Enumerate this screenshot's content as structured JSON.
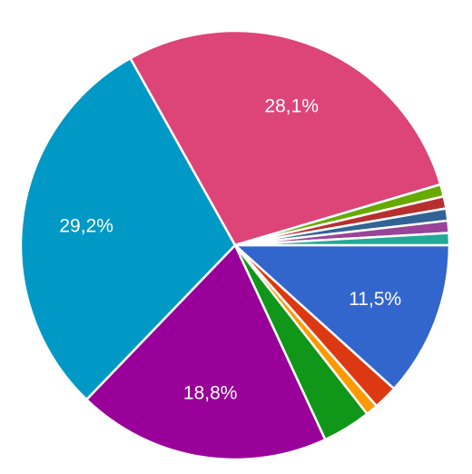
{
  "chart_data": {
    "type": "pie",
    "title": "",
    "start_angle_deg": 0,
    "direction": "clockwise",
    "slices": [
      {
        "value": 11.5,
        "label": "11,5%",
        "color": "#3366cc"
      },
      {
        "value": 1.8,
        "label": "",
        "color": "#dc3912"
      },
      {
        "value": 0.9,
        "label": "",
        "color": "#ff9900"
      },
      {
        "value": 3.6,
        "label": "",
        "color": "#109618"
      },
      {
        "value": 18.8,
        "label": "18,8%",
        "color": "#990099"
      },
      {
        "value": 29.2,
        "label": "29,2%",
        "color": "#0099c6"
      },
      {
        "value": 28.1,
        "label": "28,1%",
        "color": "#dd4477"
      },
      {
        "value": 0.9,
        "label": "",
        "color": "#66aa00"
      },
      {
        "value": 0.9,
        "label": "",
        "color": "#b82e2e"
      },
      {
        "value": 0.9,
        "label": "",
        "color": "#316395"
      },
      {
        "value": 0.9,
        "label": "",
        "color": "#994499"
      },
      {
        "value": 0.9,
        "label": "",
        "color": "#22aa99"
      }
    ]
  }
}
